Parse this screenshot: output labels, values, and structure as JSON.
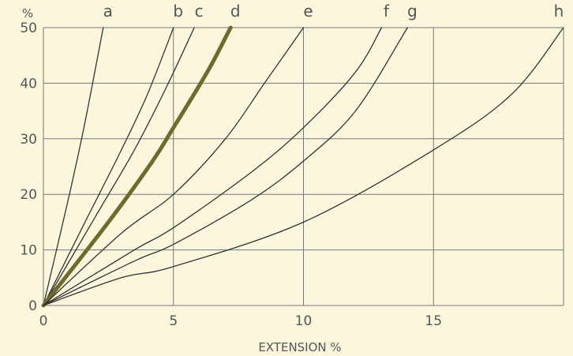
{
  "chart_data": {
    "type": "line",
    "title": "",
    "xlabel": "EXTENSION %",
    "ylabel": "%",
    "xlim": [
      0,
      20
    ],
    "ylim": [
      0,
      50
    ],
    "x_ticks": [
      "0",
      "5",
      "10",
      "15"
    ],
    "y_ticks": [
      "0",
      "10",
      "20",
      "30",
      "40",
      "50"
    ],
    "grid": true,
    "colors": {
      "background": "#fbf7dd",
      "grid": "#777777",
      "line": "#333333",
      "highlight": "#6e6b2c"
    },
    "series": [
      {
        "name": "a",
        "highlight": false,
        "points": [
          [
            0,
            0
          ],
          [
            1.0,
            20
          ],
          [
            1.6,
            33
          ],
          [
            2.3,
            50
          ]
        ]
      },
      {
        "name": "b",
        "highlight": false,
        "points": [
          [
            0,
            0
          ],
          [
            1.6,
            15
          ],
          [
            3.0,
            28
          ],
          [
            4.0,
            38
          ],
          [
            5.0,
            50
          ]
        ]
      },
      {
        "name": "c",
        "highlight": false,
        "points": [
          [
            0,
            0
          ],
          [
            2.0,
            16
          ],
          [
            3.5,
            28
          ],
          [
            4.7,
            39
          ],
          [
            5.8,
            50
          ]
        ]
      },
      {
        "name": "d",
        "highlight": true,
        "points": [
          [
            0,
            0
          ],
          [
            2.5,
            15
          ],
          [
            4.2,
            26
          ],
          [
            5.0,
            32
          ],
          [
            6.3,
            42
          ],
          [
            7.2,
            50
          ]
        ]
      },
      {
        "name": "e",
        "highlight": false,
        "points": [
          [
            0,
            0
          ],
          [
            3.0,
            13
          ],
          [
            5.0,
            20
          ],
          [
            7.0,
            30
          ],
          [
            8.5,
            40
          ],
          [
            10.0,
            50
          ]
        ]
      },
      {
        "name": "f",
        "highlight": false,
        "points": [
          [
            0,
            0
          ],
          [
            3.5,
            10
          ],
          [
            5.0,
            14
          ],
          [
            8.0,
            24
          ],
          [
            10.0,
            32
          ],
          [
            12.0,
            42
          ],
          [
            13.0,
            50
          ]
        ]
      },
      {
        "name": "g",
        "highlight": false,
        "points": [
          [
            0,
            0
          ],
          [
            3.5,
            8
          ],
          [
            5.0,
            11
          ],
          [
            8.0,
            19
          ],
          [
            10.0,
            26
          ],
          [
            12.0,
            35
          ],
          [
            14.0,
            50
          ]
        ]
      },
      {
        "name": "h",
        "highlight": false,
        "points": [
          [
            0,
            0
          ],
          [
            3.0,
            5
          ],
          [
            5.0,
            7
          ],
          [
            10.0,
            15
          ],
          [
            15.0,
            28
          ],
          [
            18.0,
            38
          ],
          [
            20.0,
            50
          ]
        ]
      }
    ]
  }
}
